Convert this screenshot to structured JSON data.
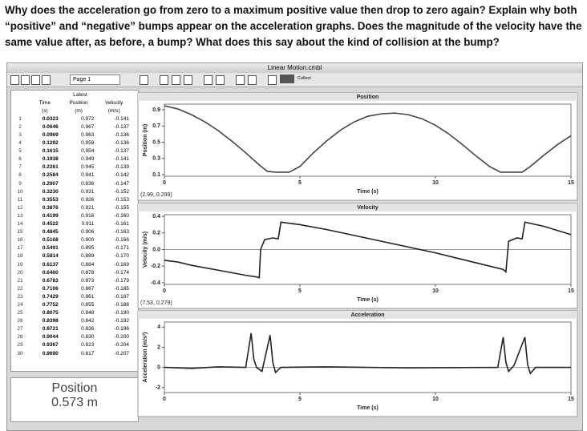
{
  "question": "Why does the acceleration go from zero to a maximum positive value then drop to zero again? Explain why both “positive” and “negative” bumps appear on the acceleration graphs. Does the magnitude of the velocity have the same value after, as before, a bump? What does this say about the kind of collision at the bump?",
  "window": {
    "title": "Linear Motion.cmbl",
    "page": "Page 1",
    "collect": "Collect"
  },
  "table": {
    "group": "Latest",
    "columns": [
      {
        "name": "Time",
        "unit": "(s)"
      },
      {
        "name": "Position",
        "unit": "(m)"
      },
      {
        "name": "Velocity",
        "unit": "(m/s)"
      }
    ],
    "rows": [
      {
        "n": 1,
        "cells": [
          "0.0323",
          "0.972",
          "-0.141"
        ]
      },
      {
        "n": 2,
        "cells": [
          "0.0646",
          "0.967",
          "-0.137"
        ]
      },
      {
        "n": 3,
        "cells": [
          "0.0969",
          "0.963",
          "-0.136"
        ]
      },
      {
        "n": 4,
        "cells": [
          "0.1292",
          "0.958",
          "-0.136"
        ]
      },
      {
        "n": 5,
        "cells": [
          "0.1615",
          "0.954",
          "-0.137"
        ]
      },
      {
        "n": 6,
        "cells": [
          "0.1938",
          "0.949",
          "-0.141"
        ]
      },
      {
        "n": 7,
        "cells": [
          "0.2261",
          "0.945",
          "-0.139"
        ]
      },
      {
        "n": 8,
        "cells": [
          "0.2584",
          "0.941",
          "-0.142"
        ]
      },
      {
        "n": 9,
        "cells": [
          "0.2907",
          "0.936",
          "-0.147"
        ]
      },
      {
        "n": 10,
        "cells": [
          "0.3230",
          "0.931",
          "-0.152"
        ]
      },
      {
        "n": 11,
        "cells": [
          "0.3553",
          "0.926",
          "-0.153"
        ]
      },
      {
        "n": 12,
        "cells": [
          "0.3876",
          "0.921",
          "-0.155"
        ]
      },
      {
        "n": 13,
        "cells": [
          "0.4199",
          "0.916",
          "-0.160"
        ]
      },
      {
        "n": 14,
        "cells": [
          "0.4522",
          "0.911",
          "-0.161"
        ]
      },
      {
        "n": 15,
        "cells": [
          "0.4845",
          "0.906",
          "-0.163"
        ]
      },
      {
        "n": 16,
        "cells": [
          "0.5168",
          "0.900",
          "-0.166"
        ]
      },
      {
        "n": 17,
        "cells": [
          "0.5491",
          "0.895",
          "-0.171"
        ]
      },
      {
        "n": 18,
        "cells": [
          "0.5814",
          "0.889",
          "-0.170"
        ]
      },
      {
        "n": 19,
        "cells": [
          "0.6137",
          "0.884",
          "-0.169"
        ]
      },
      {
        "n": 20,
        "cells": [
          "0.6460",
          "0.878",
          "-0.174"
        ]
      },
      {
        "n": 21,
        "cells": [
          "0.6783",
          "0.873",
          "-0.179"
        ]
      },
      {
        "n": 22,
        "cells": [
          "0.7106",
          "0.867",
          "-0.185"
        ]
      },
      {
        "n": 23,
        "cells": [
          "0.7429",
          "0.861",
          "-0.187"
        ]
      },
      {
        "n": 24,
        "cells": [
          "0.7752",
          "0.855",
          "-0.188"
        ]
      },
      {
        "n": 25,
        "cells": [
          "0.8075",
          "0.848",
          "-0.190"
        ]
      },
      {
        "n": 26,
        "cells": [
          "0.8398",
          "0.842",
          "-0.192"
        ]
      },
      {
        "n": 27,
        "cells": [
          "0.8721",
          "0.836",
          "-0.196"
        ]
      },
      {
        "n": 28,
        "cells": [
          "0.9044",
          "0.830",
          "-0.200"
        ]
      },
      {
        "n": 29,
        "cells": [
          "0.9367",
          "0.823",
          "-0.204"
        ]
      },
      {
        "n": 30,
        "cells": [
          "0.9690",
          "0.817",
          "-0.207"
        ]
      }
    ]
  },
  "meter": {
    "label": "Position",
    "value": "0.573 m"
  },
  "chart_data": [
    {
      "type": "line",
      "title": "Position",
      "y_label": "Position (m)",
      "x_label": "Time (s)",
      "readout": "(2.99, 0.299)",
      "x": [
        0,
        0.5,
        1,
        1.5,
        2,
        2.5,
        3,
        3.5,
        3.8,
        4.1,
        4.6,
        5,
        5.5,
        6,
        6.5,
        7,
        7.5,
        8,
        8.5,
        9,
        9.5,
        10,
        10.5,
        11,
        11.5,
        12,
        12.4,
        13.2,
        13.5,
        14,
        14.5,
        15
      ],
      "values": [
        0.95,
        0.91,
        0.84,
        0.75,
        0.64,
        0.51,
        0.37,
        0.22,
        0.14,
        0.13,
        0.13,
        0.2,
        0.37,
        0.52,
        0.65,
        0.75,
        0.82,
        0.85,
        0.86,
        0.84,
        0.79,
        0.71,
        0.6,
        0.47,
        0.33,
        0.2,
        0.13,
        0.13,
        0.2,
        0.34,
        0.47,
        0.58
      ],
      "color": "#444444",
      "xlim": [
        0,
        15
      ],
      "ylim": [
        0.08,
        0.97
      ],
      "xticks": [
        0,
        5,
        10,
        15
      ],
      "yticks": [
        0.1,
        0.3,
        0.5,
        0.7,
        0.9
      ]
    },
    {
      "type": "line",
      "title": "Velocity",
      "y_label": "Velocity (m/s)",
      "x_label": "Time (s)",
      "readout": "(7.53, 0.279)",
      "x": [
        0,
        0.5,
        1,
        1.5,
        2,
        2.5,
        3,
        3.4,
        3.5,
        3.55,
        3.7,
        4.0,
        4.2,
        4.3,
        5,
        6,
        7,
        8,
        9,
        10,
        11,
        12,
        12.5,
        12.6,
        12.7,
        13.0,
        13.2,
        13.3,
        14,
        15
      ],
      "values": [
        -0.13,
        -0.15,
        -0.19,
        -0.22,
        -0.25,
        -0.28,
        -0.31,
        -0.33,
        -0.34,
        0.0,
        0.12,
        0.14,
        0.13,
        0.33,
        0.3,
        0.24,
        0.17,
        0.1,
        0.03,
        -0.04,
        -0.12,
        -0.2,
        -0.24,
        -0.27,
        0.1,
        0.14,
        0.13,
        0.33,
        0.28,
        0.18
      ],
      "color": "#222222",
      "xlim": [
        0,
        15
      ],
      "ylim": [
        -0.42,
        0.42
      ],
      "xticks": [
        0,
        5,
        10,
        15
      ],
      "yticks": [
        -0.4,
        -0.2,
        {
          "value": 0,
          "label": "0.0"
        },
        0.2,
        0.4
      ]
    },
    {
      "type": "line",
      "title": "Acceleration",
      "y_label": "Acceleration (m/s²)",
      "x_label": "Time (s)",
      "x": [
        0,
        1,
        2,
        3.0,
        3.2,
        3.3,
        3.4,
        3.6,
        3.9,
        4.0,
        4.1,
        4.3,
        6,
        9,
        12.3,
        12.5,
        12.6,
        12.7,
        12.9,
        13.3,
        13.4,
        13.5,
        13.7,
        15
      ],
      "values": [
        0,
        -0.1,
        0.05,
        0,
        3.4,
        0.8,
        0,
        -0.4,
        3.2,
        0.5,
        -0.5,
        0,
        0.05,
        -0.05,
        0,
        3.0,
        0.5,
        -0.4,
        0.2,
        3.0,
        0.3,
        -0.6,
        0,
        0
      ],
      "color": "#222222",
      "xlim": [
        0,
        15
      ],
      "ylim": [
        -2.5,
        4.5
      ],
      "xticks": [
        0,
        5,
        10,
        15
      ],
      "yticks": [
        -2,
        0,
        2,
        4
      ]
    }
  ]
}
